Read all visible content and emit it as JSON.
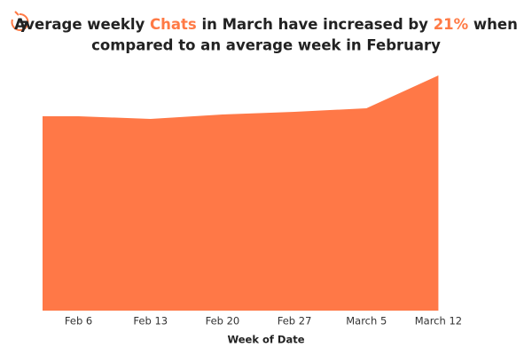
{
  "logo": "7",
  "chart_data": {
    "type": "area",
    "title": {
      "line1": [
        {
          "text": "Average weekly ",
          "highlight": false
        },
        {
          "text": "Chats",
          "highlight": true
        },
        {
          "text": " in March have increased by ",
          "highlight": false
        },
        {
          "text": "21%",
          "highlight": true
        },
        {
          "text": " when",
          "highlight": false
        }
      ],
      "line2": "compared to an average week in February"
    },
    "highlight_color": "#ff7a45",
    "color": "#ff7847",
    "xlabel": "Week of Date",
    "categories": [
      "Feb 6",
      "Feb 13",
      "Feb 20",
      "Feb 27",
      "March 5",
      "March 12"
    ],
    "values": [
      219,
      216,
      221,
      224,
      228,
      265
    ]
  }
}
